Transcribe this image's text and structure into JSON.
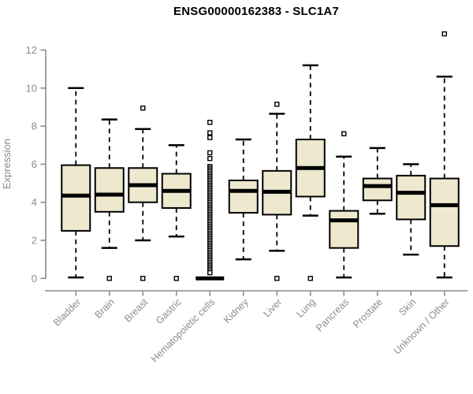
{
  "colors": {
    "box_fill": "#EDE8CE",
    "box_stroke": "#000000",
    "median": "#000000",
    "whisker": "#000000",
    "outlier_fill": "#FFFFFF",
    "outlier_stroke": "#000000",
    "axis": "#8C8C8C",
    "tick_label": "#8C8C8C",
    "title": "#000000",
    "background": "#FFFFFF"
  },
  "chart_data": {
    "type": "boxplot",
    "title": "ENSG00000162383 - SLC1A7",
    "xlabel": "",
    "ylabel": "Expression",
    "ylim": [
      0,
      12
    ],
    "yticks": [
      0,
      2,
      4,
      6,
      8,
      10,
      12
    ],
    "grid": false,
    "legend": null,
    "x_tick_rotation": 45,
    "categories": [
      "Bladder",
      "Brain",
      "Breast",
      "Gastric",
      "Hematopoietic cells",
      "Kidney",
      "Liver",
      "Lung",
      "Pancreas",
      "Prostate",
      "Skin",
      "Unknown / Other"
    ],
    "series": [
      {
        "name": "Bladder",
        "low": 0.05,
        "q1": 2.5,
        "median": 4.35,
        "q3": 5.95,
        "high": 10.0,
        "outliers": []
      },
      {
        "name": "Brain",
        "low": 1.6,
        "q1": 3.5,
        "median": 4.4,
        "q3": 5.8,
        "high": 8.35,
        "outliers": [
          0
        ]
      },
      {
        "name": "Breast",
        "low": 2.0,
        "q1": 4.0,
        "median": 4.9,
        "q3": 5.8,
        "high": 7.85,
        "outliers": [
          8.95,
          0
        ]
      },
      {
        "name": "Gastric",
        "low": 2.2,
        "q1": 3.7,
        "median": 4.6,
        "q3": 5.5,
        "high": 7.0,
        "outliers": [
          0
        ]
      },
      {
        "name": "Hematopoietic cells",
        "low": 0,
        "q1": 0,
        "median": 0,
        "q3": 0,
        "high": 0,
        "outliers": [
          8.2,
          7.65,
          7.4,
          6.6,
          6.3,
          5.88,
          5.79,
          5.7,
          5.61,
          5.52,
          5.43,
          5.34,
          5.25,
          5.16,
          5.07,
          4.98,
          4.89,
          4.8,
          4.71,
          4.62,
          4.53,
          4.44,
          4.35,
          4.26,
          4.17,
          4.08,
          3.99,
          3.9,
          3.81,
          3.72,
          3.63,
          3.54,
          3.45,
          3.36,
          3.27,
          3.18,
          3.09,
          3.0,
          2.91,
          2.82,
          2.73,
          2.64,
          2.55,
          2.46,
          2.37,
          2.28,
          2.19,
          2.1,
          2.01,
          1.92,
          1.83,
          1.74,
          1.65,
          1.56,
          1.47,
          1.38,
          1.29,
          1.2,
          1.11,
          1.02,
          0.93,
          0.84,
          0.75,
          0.66,
          0.57,
          0.48,
          0.39,
          0.3
        ]
      },
      {
        "name": "Kidney",
        "low": 1.0,
        "q1": 3.45,
        "median": 4.6,
        "q3": 5.15,
        "high": 7.3,
        "outliers": []
      },
      {
        "name": "Liver",
        "low": 1.45,
        "q1": 3.35,
        "median": 4.55,
        "q3": 5.65,
        "high": 8.65,
        "outliers": [
          9.15,
          0
        ]
      },
      {
        "name": "Lung",
        "low": 3.3,
        "q1": 4.3,
        "median": 5.8,
        "q3": 7.3,
        "high": 11.2,
        "outliers": [
          0
        ]
      },
      {
        "name": "Pancreas",
        "low": 0.05,
        "q1": 1.6,
        "median": 3.05,
        "q3": 3.55,
        "high": 6.4,
        "outliers": [
          7.6
        ]
      },
      {
        "name": "Prostate",
        "low": 3.4,
        "q1": 4.1,
        "median": 4.85,
        "q3": 5.25,
        "high": 6.85,
        "outliers": []
      },
      {
        "name": "Skin",
        "low": 1.25,
        "q1": 3.1,
        "median": 4.5,
        "q3": 5.4,
        "high": 6.0,
        "outliers": []
      },
      {
        "name": "Unknown / Other",
        "low": 0.05,
        "q1": 1.7,
        "median": 3.85,
        "q3": 5.25,
        "high": 10.6,
        "outliers": [
          12.85
        ]
      }
    ]
  }
}
